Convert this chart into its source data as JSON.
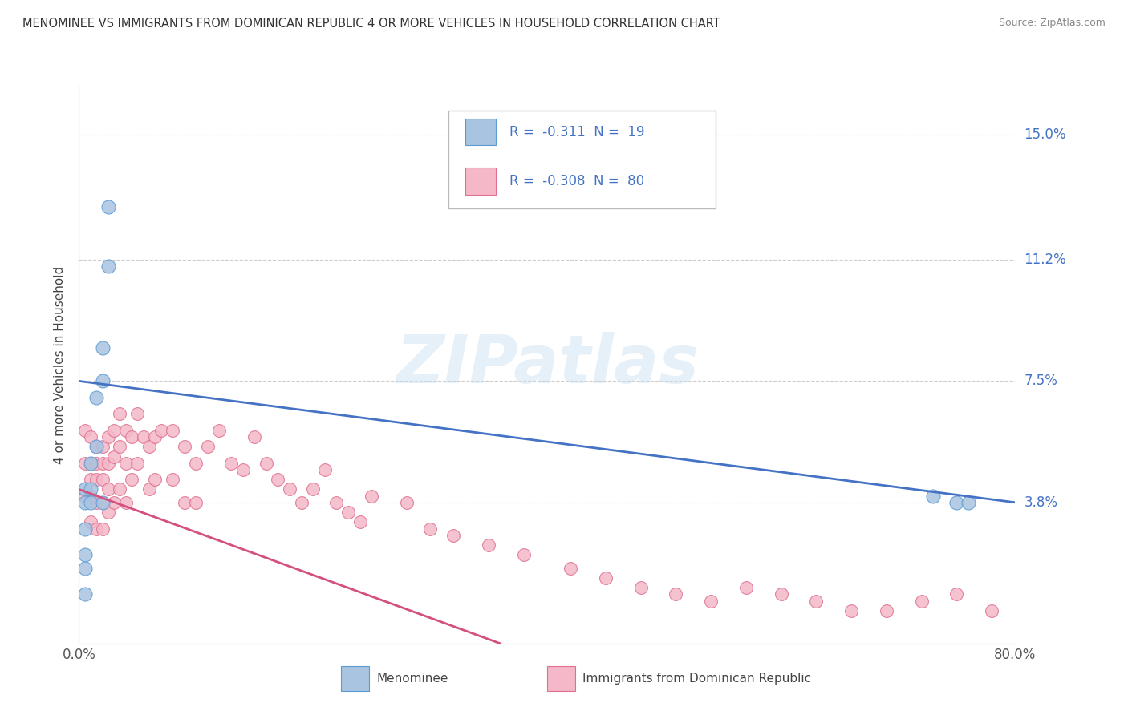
{
  "title": "MENOMINEE VS IMMIGRANTS FROM DOMINICAN REPUBLIC 4 OR MORE VEHICLES IN HOUSEHOLD CORRELATION CHART",
  "source": "Source: ZipAtlas.com",
  "ylabel": "4 or more Vehicles in Household",
  "xlim": [
    0.0,
    0.8
  ],
  "ylim": [
    -0.005,
    0.165
  ],
  "ytick_positions": [
    0.038,
    0.075,
    0.112,
    0.15
  ],
  "ytick_labels": [
    "3.8%",
    "7.5%",
    "11.2%",
    "15.0%"
  ],
  "watermark": "ZIPatlas",
  "legend_R1": "-0.311",
  "legend_N1": "19",
  "legend_R2": "-0.308",
  "legend_N2": "80",
  "blue_scatter_color": "#a8c4e0",
  "blue_edge_color": "#5b9bd5",
  "pink_scatter_color": "#f4b8c8",
  "pink_edge_color": "#e07090",
  "line_blue": "#4472c4",
  "line_pink": "#d45080",
  "text_blue": "#4472c4",
  "menominee_x": [
    0.005,
    0.005,
    0.005,
    0.005,
    0.005,
    0.005,
    0.01,
    0.01,
    0.01,
    0.015,
    0.015,
    0.02,
    0.02,
    0.02,
    0.025,
    0.025,
    0.73,
    0.75,
    0.76
  ],
  "menominee_y": [
    0.042,
    0.038,
    0.03,
    0.022,
    0.018,
    0.01,
    0.05,
    0.042,
    0.038,
    0.07,
    0.055,
    0.085,
    0.075,
    0.038,
    0.128,
    0.11,
    0.04,
    0.038,
    0.038
  ],
  "dominican_x": [
    0.005,
    0.005,
    0.005,
    0.01,
    0.01,
    0.01,
    0.01,
    0.01,
    0.015,
    0.015,
    0.015,
    0.015,
    0.015,
    0.02,
    0.02,
    0.02,
    0.02,
    0.02,
    0.025,
    0.025,
    0.025,
    0.025,
    0.03,
    0.03,
    0.03,
    0.035,
    0.035,
    0.035,
    0.04,
    0.04,
    0.04,
    0.045,
    0.045,
    0.05,
    0.05,
    0.055,
    0.06,
    0.06,
    0.065,
    0.065,
    0.07,
    0.08,
    0.08,
    0.09,
    0.09,
    0.1,
    0.1,
    0.11,
    0.12,
    0.13,
    0.14,
    0.15,
    0.16,
    0.17,
    0.18,
    0.19,
    0.2,
    0.21,
    0.22,
    0.23,
    0.24,
    0.25,
    0.28,
    0.3,
    0.32,
    0.35,
    0.38,
    0.42,
    0.45,
    0.48,
    0.51,
    0.54,
    0.57,
    0.6,
    0.63,
    0.66,
    0.69,
    0.72,
    0.75,
    0.78
  ],
  "dominican_y": [
    0.06,
    0.05,
    0.04,
    0.058,
    0.05,
    0.045,
    0.04,
    0.032,
    0.055,
    0.05,
    0.045,
    0.038,
    0.03,
    0.055,
    0.05,
    0.045,
    0.038,
    0.03,
    0.058,
    0.05,
    0.042,
    0.035,
    0.06,
    0.052,
    0.038,
    0.065,
    0.055,
    0.042,
    0.06,
    0.05,
    0.038,
    0.058,
    0.045,
    0.065,
    0.05,
    0.058,
    0.055,
    0.042,
    0.058,
    0.045,
    0.06,
    0.06,
    0.045,
    0.055,
    0.038,
    0.05,
    0.038,
    0.055,
    0.06,
    0.05,
    0.048,
    0.058,
    0.05,
    0.045,
    0.042,
    0.038,
    0.042,
    0.048,
    0.038,
    0.035,
    0.032,
    0.04,
    0.038,
    0.03,
    0.028,
    0.025,
    0.022,
    0.018,
    0.015,
    0.012,
    0.01,
    0.008,
    0.012,
    0.01,
    0.008,
    0.005,
    0.005,
    0.008,
    0.01,
    0.005
  ],
  "blue_line_x0": 0.0,
  "blue_line_x1": 0.8,
  "blue_line_y0": 0.075,
  "blue_line_y1": 0.038,
  "pink_line_x0": 0.0,
  "pink_line_x1": 0.36,
  "pink_line_y0": 0.042,
  "pink_line_y1": -0.005
}
